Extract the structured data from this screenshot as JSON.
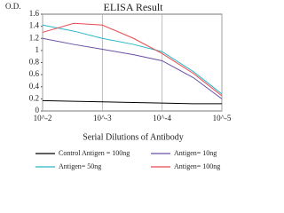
{
  "chart_data": {
    "type": "line",
    "title": "ELISA Result",
    "ylabel": "O.D.",
    "xlabel": "Serial Dilutions  of Antibody",
    "x": [
      0.01,
      0.003,
      0.001,
      0.0003,
      0.0001,
      3e-05,
      1e-05
    ],
    "series": [
      {
        "name": "Control Antigen = 100ng",
        "color": "#000000",
        "values": [
          0.17,
          0.16,
          0.15,
          0.14,
          0.13,
          0.12,
          0.12
        ]
      },
      {
        "name": "Antigen= 10ng",
        "color": "#6a4fa3",
        "values": [
          1.2,
          1.1,
          1.02,
          0.93,
          0.83,
          0.55,
          0.2
        ]
      },
      {
        "name": "Antigen= 50ng",
        "color": "#2ab7c8",
        "values": [
          1.42,
          1.32,
          1.2,
          1.1,
          0.98,
          0.65,
          0.28
        ]
      },
      {
        "name": "Antigen= 100ng",
        "color": "#e8484f",
        "values": [
          1.3,
          1.45,
          1.42,
          1.2,
          0.95,
          0.62,
          0.25
        ]
      }
    ],
    "xscale": "log",
    "xlim": [
      0.01,
      1e-05
    ],
    "xticks": [
      {
        "value": 0.01,
        "label": "10^-2"
      },
      {
        "value": 0.001,
        "label": "10^-3"
      },
      {
        "value": 0.0001,
        "label": "10^-4"
      },
      {
        "value": 1e-05,
        "label": "10^-5"
      }
    ],
    "ylim": [
      0,
      1.6
    ],
    "yticks": [
      0,
      0.2,
      0.4,
      0.6,
      0.8,
      1,
      1.2,
      1.4,
      1.6
    ],
    "xgrid": true
  }
}
